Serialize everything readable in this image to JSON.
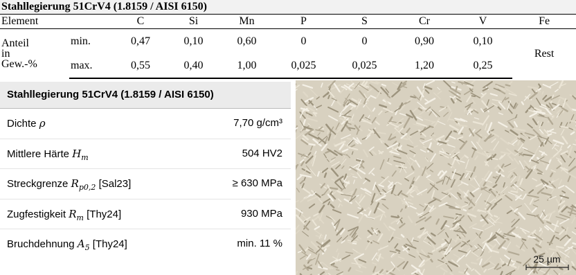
{
  "composition_table": {
    "title": "Stahllegierung 51CrV4 (1.8159 / AISI 6150)",
    "header": [
      "Element",
      "C",
      "Si",
      "Mn",
      "P",
      "S",
      "Cr",
      "V",
      "Fe"
    ],
    "row_label": "Anteil in Gew.-%",
    "rows": [
      [
        "min.",
        "0,47",
        "0,10",
        "0,60",
        "0",
        "0",
        "0,90",
        "0,10"
      ],
      [
        "max.",
        "0,55",
        "0,40",
        "1,00",
        "0,025",
        "0,025",
        "1,20",
        "0,25"
      ]
    ],
    "fe_value": "Rest"
  },
  "properties_table": {
    "title": "Stahllegierung 51CrV4 (1.8159 / AISI 6150)",
    "rows": [
      {
        "label": "Dichte",
        "symbol": "ρ",
        "value": "7,70 g/cm³"
      },
      {
        "label": "Mittlere Härte",
        "symbol": "H",
        "sub": "m",
        "value": "504 HV2"
      },
      {
        "label": "Streckgrenze",
        "symbol": "R",
        "sub": "p0,2",
        "ref": "[Sal23]",
        "value": "≥ 630 MPa"
      },
      {
        "label": "Zugfestigkeit",
        "symbol": "R",
        "sub": "m",
        "ref": "[Thy24]",
        "value": "930 MPa"
      },
      {
        "label": "Bruchdehnung",
        "symbol": "A",
        "sub": "5",
        "ref": "[Thy24]",
        "value": "min. 11 %"
      }
    ]
  },
  "micrograph": {
    "scale_bar": "25 µm"
  }
}
